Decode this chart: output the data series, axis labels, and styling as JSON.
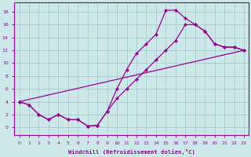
{
  "xlabel": "Windchill (Refroidissement éolien,°C)",
  "xlim": [
    -0.5,
    23.5
  ],
  "ylim": [
    -1.2,
    19.5
  ],
  "xticks": [
    0,
    1,
    2,
    3,
    4,
    5,
    6,
    7,
    8,
    9,
    10,
    11,
    12,
    13,
    14,
    15,
    16,
    17,
    18,
    19,
    20,
    21,
    22,
    23
  ],
  "yticks": [
    0,
    2,
    4,
    6,
    8,
    10,
    12,
    14,
    16,
    18
  ],
  "bg_color": "#cce8e8",
  "grid_color": "#aacccc",
  "line_color": "#990099",
  "curve_high_x": [
    0,
    1,
    2,
    3,
    4,
    5,
    6,
    7,
    8,
    9,
    10,
    11,
    12,
    13,
    14,
    15,
    16,
    17,
    18,
    19,
    20,
    21,
    22,
    23
  ],
  "curve_high_y": [
    4.0,
    3.5,
    2.0,
    1.2,
    2.0,
    1.2,
    1.2,
    0.2,
    0.3,
    2.5,
    6.0,
    9.0,
    11.5,
    13.0,
    14.5,
    18.2,
    18.3,
    17.0,
    16.0,
    15.0,
    13.0,
    12.5,
    12.5,
    12.0
  ],
  "curve_low_x": [
    0,
    1,
    2,
    3,
    4,
    5,
    6,
    7,
    8,
    9,
    10,
    11,
    12,
    13,
    14,
    15,
    16,
    17,
    18,
    19,
    20,
    21,
    22,
    23
  ],
  "curve_low_y": [
    4.0,
    3.5,
    2.0,
    1.2,
    2.0,
    1.2,
    1.2,
    0.2,
    0.3,
    2.5,
    4.5,
    6.0,
    7.5,
    9.0,
    10.5,
    12.0,
    13.5,
    16.0,
    16.0,
    15.0,
    13.0,
    12.5,
    12.5,
    12.0
  ],
  "line_x": [
    0,
    23
  ],
  "line_y": [
    4.0,
    12.0
  ],
  "marker_size": 2.5,
  "linewidth": 0.9
}
